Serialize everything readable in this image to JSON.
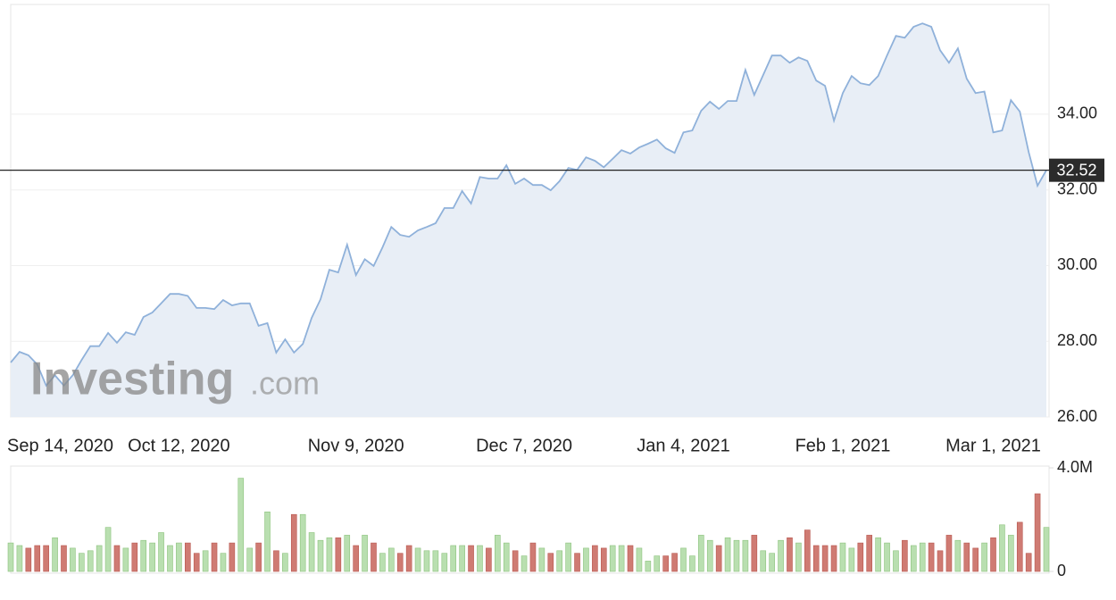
{
  "chart_data": {
    "type": "area",
    "watermark": {
      "brand": "Investing",
      "suffix": ".com"
    },
    "categories": [
      "Sep 14, 2020",
      null,
      null,
      null,
      null,
      null,
      null,
      null,
      null,
      null,
      null,
      null,
      null,
      null,
      null,
      null,
      null,
      null,
      null,
      "Oct 12, 2020",
      null,
      null,
      null,
      null,
      null,
      null,
      null,
      null,
      null,
      null,
      null,
      null,
      null,
      null,
      null,
      null,
      null,
      null,
      null,
      "Nov 9, 2020",
      null,
      null,
      null,
      null,
      null,
      null,
      null,
      null,
      null,
      null,
      null,
      null,
      null,
      null,
      null,
      null,
      null,
      null,
      "Dec 7, 2020",
      null,
      null,
      null,
      null,
      null,
      null,
      null,
      null,
      null,
      null,
      null,
      null,
      null,
      null,
      null,
      null,
      null,
      "Jan 4, 2021",
      null,
      null,
      null,
      null,
      null,
      null,
      null,
      null,
      null,
      null,
      null,
      null,
      null,
      null,
      null,
      null,
      null,
      "Feb 1, 2021",
      null,
      null,
      null,
      null,
      null,
      null,
      null,
      null,
      null,
      null,
      null,
      null,
      null,
      null,
      null,
      null,
      "Mar 1, 2021",
      null,
      null,
      null,
      null,
      null,
      null
    ],
    "series": [
      {
        "name": "Price",
        "type": "area",
        "color": "#8fb1da",
        "fill": "#e8eef6",
        "values": [
          27.44,
          27.72,
          27.63,
          27.39,
          26.83,
          27.1,
          26.83,
          27.1,
          27.5,
          27.87,
          27.87,
          28.22,
          27.96,
          28.24,
          28.17,
          28.64,
          28.76,
          29.0,
          29.25,
          29.25,
          29.2,
          28.88,
          28.88,
          28.85,
          29.09,
          28.95,
          29.0,
          29.0,
          28.41,
          28.48,
          27.7,
          28.05,
          27.7,
          27.93,
          28.62,
          29.11,
          29.89,
          29.82,
          30.55,
          29.75,
          30.17,
          29.99,
          30.48,
          31.02,
          30.81,
          30.76,
          30.93,
          31.02,
          31.12,
          31.52,
          31.52,
          31.97,
          31.64,
          32.34,
          32.3,
          32.3,
          32.65,
          32.16,
          32.3,
          32.13,
          32.13,
          31.99,
          32.23,
          32.58,
          32.53,
          32.86,
          32.77,
          32.6,
          32.82,
          33.05,
          32.96,
          33.12,
          33.22,
          33.33,
          33.1,
          32.98,
          33.52,
          33.57,
          34.09,
          34.33,
          34.14,
          34.35,
          34.35,
          35.17,
          34.51,
          35.03,
          35.55,
          35.55,
          35.36,
          35.5,
          35.41,
          34.89,
          34.75,
          33.83,
          34.56,
          35.01,
          34.82,
          34.77,
          35.01,
          35.55,
          36.07,
          36.02,
          36.31,
          36.4,
          36.31,
          35.69,
          35.36,
          35.74,
          34.94,
          34.56,
          34.6,
          33.52,
          33.57,
          34.37,
          34.07,
          33.0,
          32.11,
          32.52
        ]
      },
      {
        "name": "Volume",
        "type": "bar",
        "axis": "y2",
        "up_color": "#b9dfb0",
        "down_color": "#cf7b73",
        "values": [
          1100000,
          1000000,
          900000,
          1000000,
          1000000,
          1300000,
          1000000,
          900000,
          700000,
          800000,
          1000000,
          1700000,
          1000000,
          900000,
          1100000,
          1200000,
          1100000,
          1500000,
          1000000,
          1100000,
          1100000,
          700000,
          800000,
          1100000,
          700000,
          1100000,
          3600000,
          900000,
          1100000,
          2300000,
          800000,
          700000,
          2200000,
          2200000,
          1500000,
          1200000,
          1300000,
          1300000,
          1400000,
          1000000,
          1400000,
          1100000,
          700000,
          900000,
          700000,
          1000000,
          900000,
          800000,
          800000,
          700000,
          1000000,
          1000000,
          1000000,
          1000000,
          900000,
          1400000,
          1100000,
          800000,
          600000,
          1100000,
          900000,
          700000,
          800000,
          1100000,
          700000,
          900000,
          1000000,
          900000,
          1000000,
          1000000,
          1000000,
          900000,
          400000,
          600000,
          600000,
          700000,
          900000,
          600000,
          1400000,
          1200000,
          1000000,
          1300000,
          1200000,
          1200000,
          1400000,
          800000,
          700000,
          1200000,
          1300000,
          1100000,
          1600000,
          1000000,
          1000000,
          1000000,
          1100000,
          900000,
          1100000,
          1400000,
          1300000,
          1100000,
          800000,
          1200000,
          1000000,
          1100000,
          1100000,
          800000,
          1400000,
          1200000,
          1100000,
          900000,
          1100000,
          1300000,
          1800000,
          1400000,
          1900000,
          700000,
          3000000,
          1700000
        ]
      }
    ],
    "ylim": [
      26,
      36.9
    ],
    "yticks": [
      {
        "value": 26,
        "label": "26.00"
      },
      {
        "value": 28,
        "label": "28.00"
      },
      {
        "value": 30,
        "label": "30.00"
      },
      {
        "value": 32,
        "label": "32.00"
      },
      {
        "value": 34,
        "label": "34.00"
      }
    ],
    "y2lim": [
      0,
      4000000
    ],
    "y2ticks": [
      0,
      {
        "value": 4000000,
        "label": "4.0M"
      }
    ],
    "grid": true
  }
}
